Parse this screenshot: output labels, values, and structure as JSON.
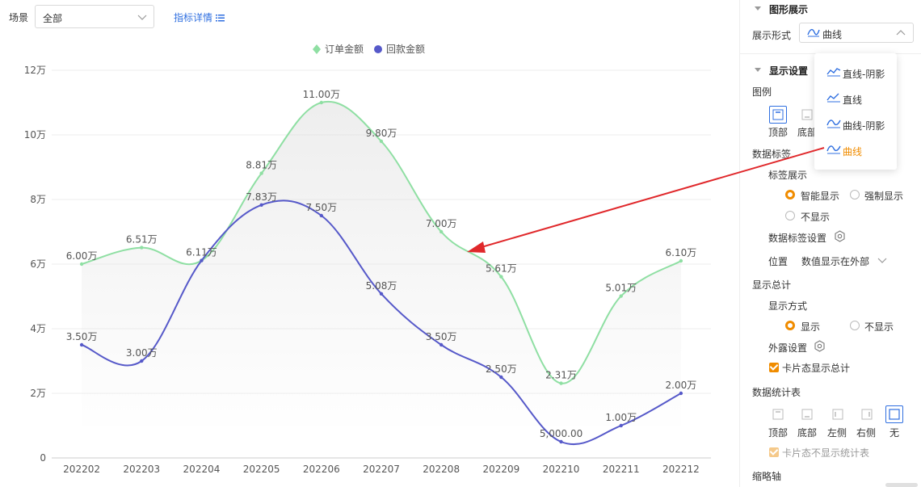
{
  "filters": {
    "scene_label": "场景",
    "scene_value": "全部",
    "metric_link": "指标详情"
  },
  "chart_data": {
    "type": "line",
    "categories": [
      "202202",
      "202203",
      "202204",
      "202205",
      "202206",
      "202207",
      "202208",
      "202209",
      "202210",
      "202211",
      "202212"
    ],
    "series": [
      {
        "name": "订单金额",
        "color": "#8fdfa3",
        "smooth": true,
        "area": true,
        "values": [
          60000,
          65100,
          61100,
          88100,
          110000,
          98000,
          70000,
          56100,
          23100,
          50100,
          61000
        ],
        "labels": [
          "6.00万",
          "6.51万",
          "6.11万",
          "8.81万",
          "11.00万",
          "9.80万",
          "7.00万",
          "5.61万",
          "2.31万",
          "5.01万",
          "6.10万"
        ]
      },
      {
        "name": "回款金额",
        "color": "#5659c9",
        "smooth": true,
        "area": false,
        "values": [
          35000,
          30000,
          61100,
          78300,
          75000,
          50800,
          35000,
          25000,
          5000,
          10000,
          20000
        ],
        "labels": [
          "3.50万",
          "3.00万",
          "",
          "7.83万",
          "7.50万",
          "5.08万",
          "3.50万",
          "2.50万",
          "5,000.00",
          "1.00万",
          "2.00万"
        ]
      }
    ],
    "y_ticks": [
      0,
      20000,
      40000,
      60000,
      80000,
      100000,
      120000
    ],
    "y_tick_labels": [
      "0",
      "2万",
      "4万",
      "6万",
      "8万",
      "10万",
      "12万"
    ],
    "ylim": [
      0,
      120000
    ],
    "legend_position": "top-center",
    "grid": true
  },
  "panel": {
    "graph_section": "图形展示",
    "display_form_label": "展示形式",
    "display_form_value": "曲线",
    "display_section": "显示设置",
    "legend_label": "图例",
    "legend_positions": [
      "顶部",
      "底部"
    ],
    "data_label_title": "数据标签",
    "label_display_title": "标签展示",
    "label_options": [
      "智能显示",
      "强制显示",
      "不显示"
    ],
    "data_label_settings": "数据标签设置",
    "position_label": "位置",
    "position_value": "数值显示在外部",
    "show_total_title": "显示总计",
    "show_mode_label": "显示方式",
    "show_mode_options": [
      "显示",
      "不显示"
    ],
    "exposure_settings": "外露设置",
    "card_show_total": "卡片态显示总计",
    "stats_table_title": "数据统计表",
    "stats_positions": [
      "顶部",
      "底部",
      "左侧",
      "右侧",
      "无"
    ],
    "card_hide_stats": "卡片态不显示统计表",
    "thumbnail_axis": "缩略轴"
  },
  "dropdown": {
    "options": [
      "直线-阴影",
      "直线",
      "曲线-阴影",
      "曲线"
    ],
    "selected_index": 3
  }
}
